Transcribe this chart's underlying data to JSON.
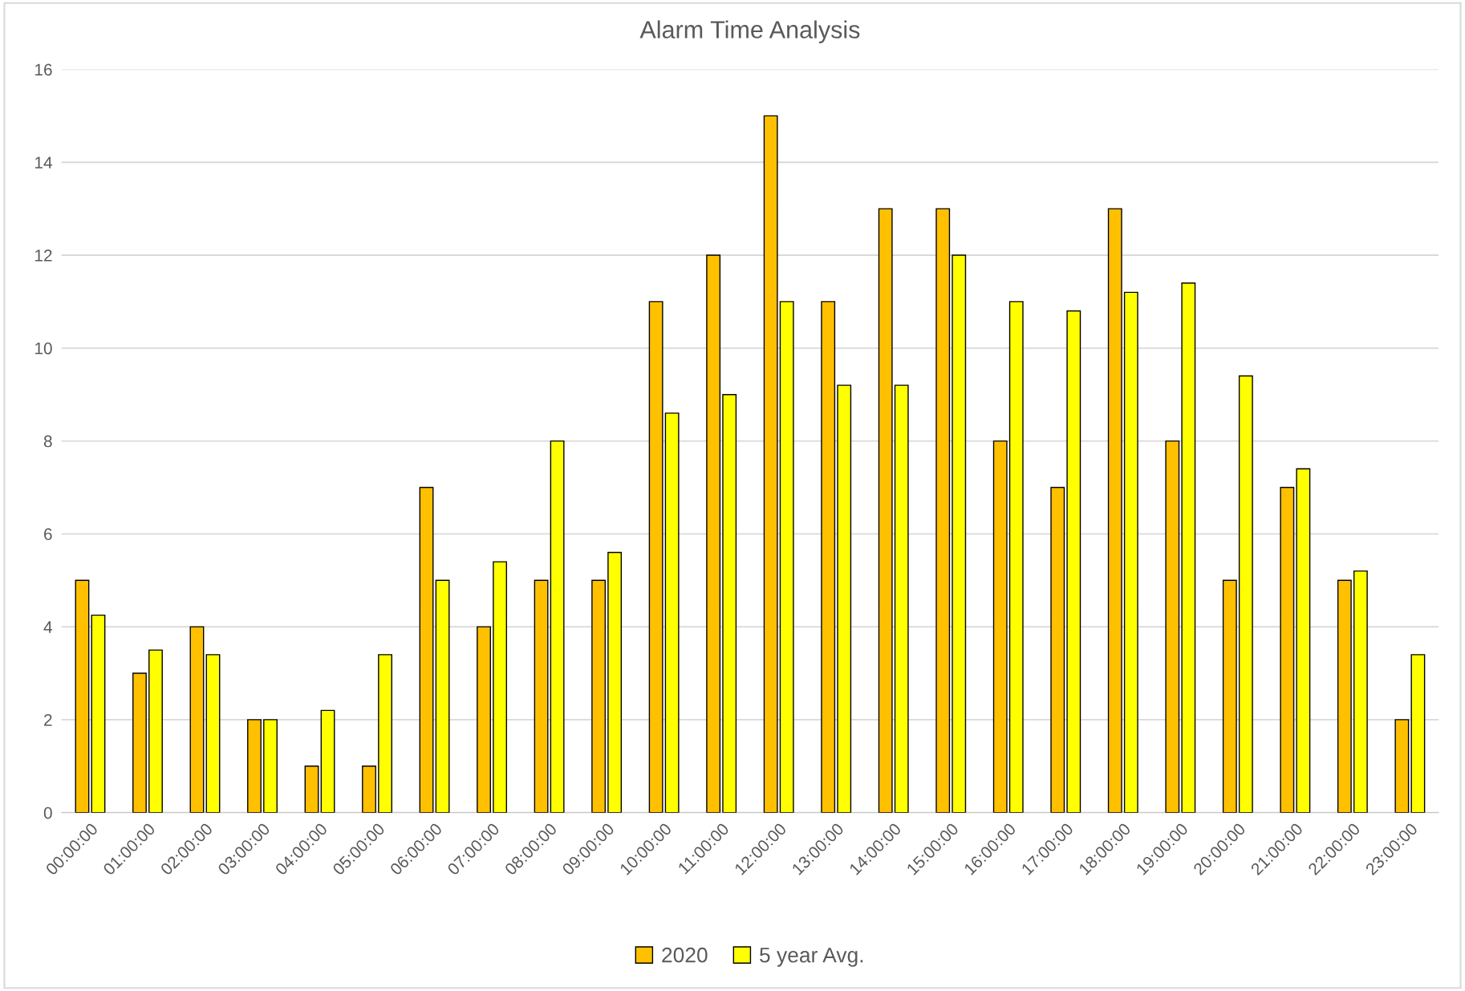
{
  "chart_data": {
    "type": "bar",
    "title": "Alarm Time Analysis",
    "categories": [
      "00:00:00",
      "01:00:00",
      "02:00:00",
      "03:00:00",
      "04:00:00",
      "05:00:00",
      "06:00:00",
      "07:00:00",
      "08:00:00",
      "09:00:00",
      "10:00:00",
      "11:00:00",
      "12:00:00",
      "13:00:00",
      "14:00:00",
      "15:00:00",
      "16:00:00",
      "17:00:00",
      "18:00:00",
      "19:00:00",
      "20:00:00",
      "21:00:00",
      "22:00:00",
      "23:00:00"
    ],
    "series": [
      {
        "name": "2020",
        "color": "#ffc000",
        "values": [
          5,
          3,
          4,
          2,
          1,
          1,
          7,
          4,
          5,
          5,
          11,
          12,
          15,
          11,
          13,
          13,
          8,
          7,
          13,
          8,
          5,
          7,
          5,
          2
        ]
      },
      {
        "name": "5 year Avg.",
        "color": "#ffff00",
        "values": [
          4.25,
          3.5,
          3.4,
          2,
          2.2,
          3.4,
          5,
          5.4,
          8,
          5.6,
          8.6,
          9,
          11,
          9.2,
          9.2,
          12,
          11,
          10.8,
          11.2,
          11.4,
          9.4,
          7.4,
          5.2,
          3.4
        ]
      }
    ],
    "ylim": [
      0,
      16
    ],
    "yticks": [
      0,
      2,
      4,
      6,
      8,
      10,
      12,
      14,
      16
    ],
    "grid": "y",
    "legend": "bottom"
  }
}
